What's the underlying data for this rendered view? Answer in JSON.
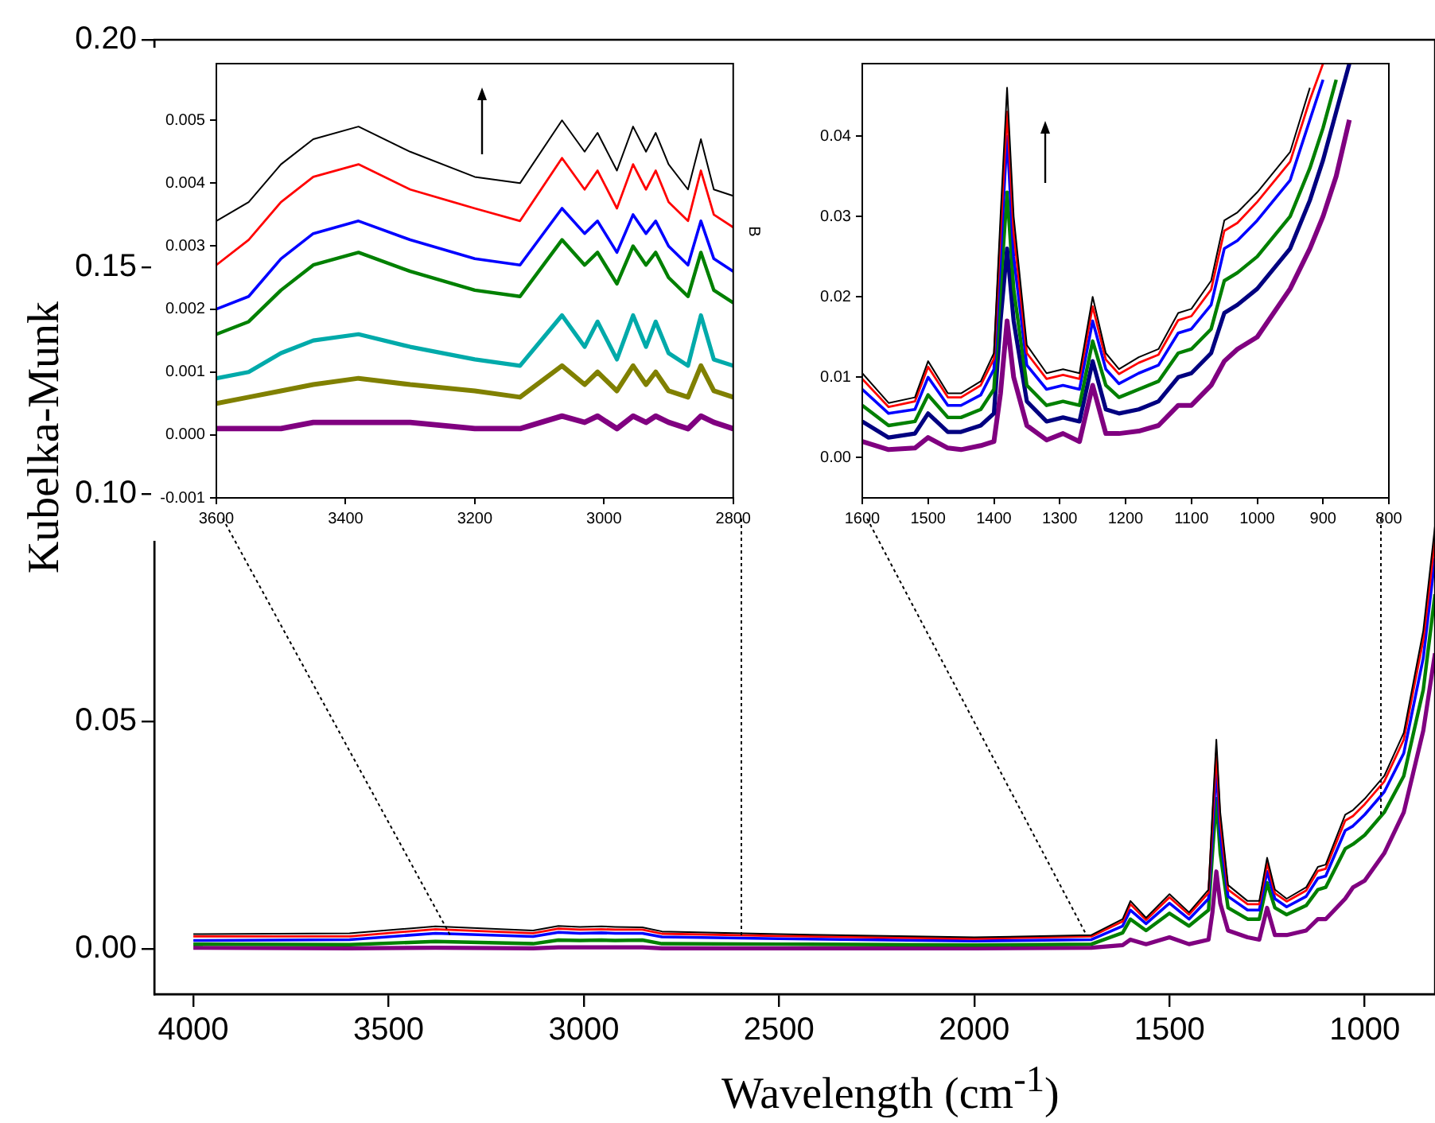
{
  "chart_data": [
    {
      "type": "line",
      "xlabel": "Wavelength (cm$^{-1}$)",
      "ylabel": "Kubelka-Munk",
      "xlim": [
        4100,
        820
      ],
      "xticks": [
        4000,
        3500,
        3000,
        2500,
        2000,
        1500,
        1000
      ],
      "ylim": [
        -0.01,
        0.2
      ],
      "yticks": [
        {
          "value": 0,
          "label": "0.00"
        },
        {
          "value": 0.05,
          "label": "0.05"
        },
        {
          "value": 0.1,
          "label": "0.10"
        },
        {
          "value": 0.15,
          "label": "0.15"
        },
        {
          "value": 0.2,
          "label": "0.20"
        }
      ],
      "x": [
        4000,
        3600,
        3380,
        3130,
        3065,
        3010,
        2955,
        2920,
        2850,
        2800,
        2500,
        2000,
        1700,
        1620,
        1600,
        1560,
        1500,
        1450,
        1400,
        1390,
        1380,
        1370,
        1350,
        1300,
        1270,
        1250,
        1230,
        1200,
        1150,
        1120,
        1100,
        1050,
        1030,
        1000,
        950,
        900,
        850,
        820
      ],
      "series": [
        {
          "color": "#000000",
          "values": [
            0.0032,
            0.0034,
            0.0049,
            0.004,
            0.005,
            0.0048,
            0.0049,
            0.0048,
            0.0047,
            0.0038,
            0.0032,
            0.0025,
            0.003,
            0.0065,
            0.0105,
            0.0068,
            0.012,
            0.008,
            0.013,
            0.03,
            0.046,
            0.03,
            0.014,
            0.0105,
            0.0105,
            0.02,
            0.013,
            0.011,
            0.0135,
            0.018,
            0.0185,
            0.0295,
            0.0305,
            0.033,
            0.038,
            0.0475,
            0.07,
            0.093
          ]
        },
        {
          "color": "#ff0000",
          "values": [
            0.0027,
            0.0027,
            0.0043,
            0.0034,
            0.0044,
            0.0042,
            0.0043,
            0.0042,
            0.0042,
            0.0033,
            0.0028,
            0.0022,
            0.0027,
            0.006,
            0.0098,
            0.0063,
            0.0113,
            0.0075,
            0.0123,
            0.028,
            0.043,
            0.028,
            0.013,
            0.0098,
            0.0098,
            0.0188,
            0.0122,
            0.0104,
            0.0128,
            0.0171,
            0.0176,
            0.0282,
            0.0292,
            0.0318,
            0.0368,
            0.046,
            0.068,
            0.09
          ]
        },
        {
          "color": "#0000ff",
          "values": [
            0.0018,
            0.002,
            0.0034,
            0.0027,
            0.0036,
            0.0034,
            0.0035,
            0.0034,
            0.0034,
            0.0026,
            0.0022,
            0.0017,
            0.002,
            0.005,
            0.0085,
            0.0055,
            0.01,
            0.0065,
            0.011,
            0.025,
            0.04,
            0.025,
            0.0115,
            0.0085,
            0.0085,
            0.017,
            0.011,
            0.0092,
            0.0115,
            0.0155,
            0.016,
            0.026,
            0.027,
            0.0295,
            0.0345,
            0.043,
            0.064,
            0.086
          ]
        },
        {
          "color": "#008000",
          "values": [
            0.001,
            0.0009,
            0.0016,
            0.0011,
            0.0019,
            0.0018,
            0.0019,
            0.0018,
            0.0019,
            0.0011,
            0.001,
            0.0008,
            0.001,
            0.0035,
            0.0065,
            0.004,
            0.0078,
            0.005,
            0.0085,
            0.021,
            0.033,
            0.021,
            0.009,
            0.0065,
            0.0065,
            0.0145,
            0.009,
            0.0075,
            0.0095,
            0.013,
            0.0135,
            0.022,
            0.023,
            0.025,
            0.03,
            0.038,
            0.057,
            0.078
          ]
        },
        {
          "color": "#800080",
          "values": [
            0.0002,
            0.0001,
            0.0002,
            0.0001,
            0.0003,
            0.0003,
            0.0003,
            0.0003,
            0.0003,
            0.0001,
            0.0001,
            0.0001,
            0.0002,
            0.0008,
            0.002,
            0.001,
            0.0025,
            0.001,
            0.002,
            0.008,
            0.017,
            0.01,
            0.004,
            0.0025,
            0.002,
            0.009,
            0.003,
            0.003,
            0.004,
            0.0065,
            0.0065,
            0.011,
            0.0135,
            0.015,
            0.021,
            0.03,
            0.048,
            0.065
          ]
        }
      ]
    },
    {
      "type": "line",
      "annotations": [
        "B"
      ],
      "xlim": [
        3600,
        2800
      ],
      "xticks": [
        3600,
        3400,
        3200,
        3000,
        2800
      ],
      "ylim": [
        -0.001,
        0.0059
      ],
      "yticks": [
        {
          "value": -0.001,
          "label": "-0.001"
        },
        {
          "value": 0,
          "label": "0.000"
        },
        {
          "value": 0.001,
          "label": "0.001"
        },
        {
          "value": 0.002,
          "label": "0.002"
        },
        {
          "value": 0.003,
          "label": "0.003"
        },
        {
          "value": 0.004,
          "label": "0.004"
        },
        {
          "value": 0.005,
          "label": "0.005"
        }
      ],
      "x": [
        3600,
        3550,
        3500,
        3450,
        3380,
        3300,
        3200,
        3130,
        3065,
        3030,
        3010,
        2980,
        2955,
        2935,
        2920,
        2900,
        2870,
        2850,
        2830,
        2800
      ],
      "series": [
        {
          "color": "#000000",
          "values": [
            0.0034,
            0.0037,
            0.0043,
            0.0047,
            0.0049,
            0.0045,
            0.0041,
            0.004,
            0.005,
            0.0045,
            0.0048,
            0.0042,
            0.0049,
            0.0045,
            0.0048,
            0.0043,
            0.0039,
            0.0047,
            0.0039,
            0.0038
          ]
        },
        {
          "color": "#ff0000",
          "values": [
            0.0027,
            0.0031,
            0.0037,
            0.0041,
            0.0043,
            0.0039,
            0.0036,
            0.0034,
            0.0044,
            0.0039,
            0.0042,
            0.0036,
            0.0043,
            0.0039,
            0.0042,
            0.0037,
            0.0034,
            0.0042,
            0.0035,
            0.0033
          ]
        },
        {
          "color": "#0000ff",
          "values": [
            0.002,
            0.0022,
            0.0028,
            0.0032,
            0.0034,
            0.0031,
            0.0028,
            0.0027,
            0.0036,
            0.0032,
            0.0034,
            0.0029,
            0.0035,
            0.0032,
            0.0034,
            0.003,
            0.0027,
            0.0034,
            0.0028,
            0.0026
          ]
        },
        {
          "color": "#008000",
          "values": [
            0.0016,
            0.0018,
            0.0023,
            0.0027,
            0.0029,
            0.0026,
            0.0023,
            0.0022,
            0.0031,
            0.0027,
            0.0029,
            0.0024,
            0.003,
            0.0027,
            0.0029,
            0.0025,
            0.0022,
            0.0029,
            0.0023,
            0.0021
          ]
        },
        {
          "color": "#00aaaa",
          "values": [
            0.0009,
            0.001,
            0.0013,
            0.0015,
            0.0016,
            0.0014,
            0.0012,
            0.0011,
            0.0019,
            0.0014,
            0.0018,
            0.0012,
            0.0019,
            0.0014,
            0.0018,
            0.0013,
            0.0011,
            0.0019,
            0.0012,
            0.0011
          ]
        },
        {
          "color": "#808000",
          "values": [
            0.0005,
            0.0006,
            0.0007,
            0.0008,
            0.0009,
            0.0008,
            0.0007,
            0.0006,
            0.0011,
            0.0008,
            0.001,
            0.0007,
            0.0011,
            0.0008,
            0.001,
            0.0007,
            0.0006,
            0.0011,
            0.0007,
            0.0006
          ]
        },
        {
          "color": "#800080",
          "values": [
            0.0001,
            0.0001,
            0.0001,
            0.0002,
            0.0002,
            0.0002,
            0.0001,
            0.0001,
            0.0003,
            0.0002,
            0.0003,
            0.0001,
            0.0003,
            0.0002,
            0.0003,
            0.0002,
            0.0001,
            0.0003,
            0.0002,
            0.0001
          ]
        }
      ]
    },
    {
      "type": "line",
      "xlim": [
        1600,
        800
      ],
      "xticks": [
        1600,
        1500,
        1400,
        1300,
        1200,
        1100,
        1000,
        900,
        800
      ],
      "ylim": [
        -0.005,
        0.049
      ],
      "yticks": [
        {
          "value": 0,
          "label": "0.00"
        },
        {
          "value": 0.01,
          "label": "0.01"
        },
        {
          "value": 0.02,
          "label": "0.02"
        },
        {
          "value": 0.03,
          "label": "0.03"
        },
        {
          "value": 0.04,
          "label": "0.04"
        }
      ],
      "x": [
        1600,
        1560,
        1520,
        1500,
        1470,
        1450,
        1420,
        1400,
        1390,
        1380,
        1370,
        1350,
        1320,
        1295,
        1270,
        1250,
        1230,
        1210,
        1180,
        1150,
        1120,
        1100,
        1070,
        1050,
        1030,
        1000,
        950,
        920,
        900,
        880,
        860
      ],
      "series": [
        {
          "color": "#000000",
          "values": [
            0.0105,
            0.0068,
            0.0075,
            0.012,
            0.008,
            0.008,
            0.0095,
            0.013,
            0.03,
            0.046,
            0.03,
            0.014,
            0.0105,
            0.011,
            0.0105,
            0.02,
            0.013,
            0.011,
            0.0125,
            0.0135,
            0.018,
            0.0185,
            0.022,
            0.0295,
            0.0305,
            0.033,
            0.038,
            0.046,
            null,
            null,
            null
          ]
        },
        {
          "color": "#ff0000",
          "values": [
            0.0098,
            0.0063,
            0.007,
            0.0113,
            0.0075,
            0.0075,
            0.009,
            0.0123,
            0.028,
            0.043,
            0.028,
            0.013,
            0.0098,
            0.0103,
            0.0098,
            0.0188,
            0.0122,
            0.0104,
            0.0118,
            0.0128,
            0.0171,
            0.0176,
            0.0209,
            0.0282,
            0.0292,
            0.0318,
            0.0368,
            0.0445,
            0.049,
            null,
            null
          ]
        },
        {
          "color": "#0000ff",
          "values": [
            0.0085,
            0.0055,
            0.006,
            0.01,
            0.0065,
            0.0065,
            0.0078,
            0.011,
            0.025,
            0.04,
            0.025,
            0.0115,
            0.0085,
            0.009,
            0.0085,
            0.017,
            0.011,
            0.0092,
            0.0105,
            0.0115,
            0.0155,
            0.016,
            0.019,
            0.026,
            0.027,
            0.0295,
            0.0345,
            0.042,
            0.047,
            null,
            null
          ]
        },
        {
          "color": "#008000",
          "values": [
            0.0065,
            0.004,
            0.0045,
            0.0078,
            0.005,
            0.005,
            0.006,
            0.0085,
            0.021,
            0.033,
            0.021,
            0.009,
            0.0065,
            0.007,
            0.0065,
            0.0145,
            0.009,
            0.0075,
            0.0085,
            0.0095,
            0.013,
            0.0135,
            0.016,
            0.022,
            0.023,
            0.025,
            0.03,
            0.036,
            0.041,
            0.047,
            null
          ]
        },
        {
          "color": "#000080",
          "values": [
            0.0045,
            0.0025,
            0.003,
            0.0055,
            0.0032,
            0.0032,
            0.004,
            0.0055,
            0.017,
            0.026,
            0.017,
            0.007,
            0.0045,
            0.005,
            0.0045,
            0.012,
            0.006,
            0.0055,
            0.006,
            0.007,
            0.01,
            0.0105,
            0.013,
            0.018,
            0.019,
            0.021,
            0.026,
            0.032,
            0.037,
            0.043,
            0.049
          ]
        },
        {
          "color": "#800080",
          "values": [
            0.002,
            0.001,
            0.0012,
            0.0025,
            0.0012,
            0.001,
            0.0015,
            0.002,
            0.008,
            0.017,
            0.01,
            0.004,
            0.0022,
            0.003,
            0.002,
            0.009,
            0.003,
            0.003,
            0.0033,
            0.004,
            0.0065,
            0.0065,
            0.009,
            0.012,
            0.0135,
            0.015,
            0.021,
            0.026,
            0.03,
            0.035,
            0.042
          ]
        }
      ]
    }
  ]
}
